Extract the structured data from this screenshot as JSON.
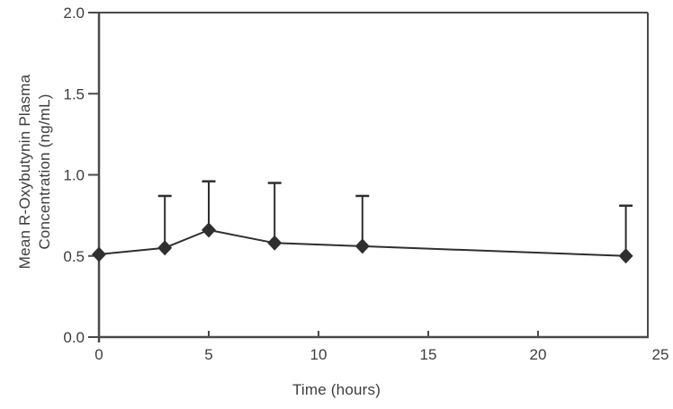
{
  "figure": {
    "background": "#ffffff",
    "xlabel": "Time (hours)",
    "ylabel_line1": "Mean R-Oxybutynin Plasma",
    "ylabel_line2": "Concentration (ng/mL)"
  },
  "chart_data": {
    "type": "line",
    "title": "",
    "xlabel": "Time (hours)",
    "ylabel": "Mean R-Oxybutynin Plasma Concentration (ng/mL)",
    "x": [
      0,
      3,
      5,
      8,
      12,
      24
    ],
    "series": [
      {
        "name": "Mean R-Oxybutynin plasma concentration",
        "values": [
          0.51,
          0.55,
          0.66,
          0.58,
          0.56,
          0.5
        ],
        "error_upper_top": [
          null,
          0.87,
          0.96,
          0.95,
          0.87,
          0.81
        ],
        "marker": "diamond",
        "color": "#2f2f2f"
      }
    ],
    "xlim": [
      0,
      25
    ],
    "ylim": [
      0,
      2
    ],
    "xticks": [
      0,
      5,
      10,
      15,
      20,
      25
    ],
    "yticks": [
      0.0,
      0.5,
      1.0,
      1.5,
      2.0
    ],
    "ytick_labels": [
      "0.0",
      "0.5",
      "1.0",
      "1.5",
      "2.0"
    ],
    "grid": false,
    "legend": "none",
    "frame": "box-top-right-border",
    "axis_color": "#4a4a4a",
    "text_color": "#3d3d3d",
    "tick_font_size": 17
  }
}
